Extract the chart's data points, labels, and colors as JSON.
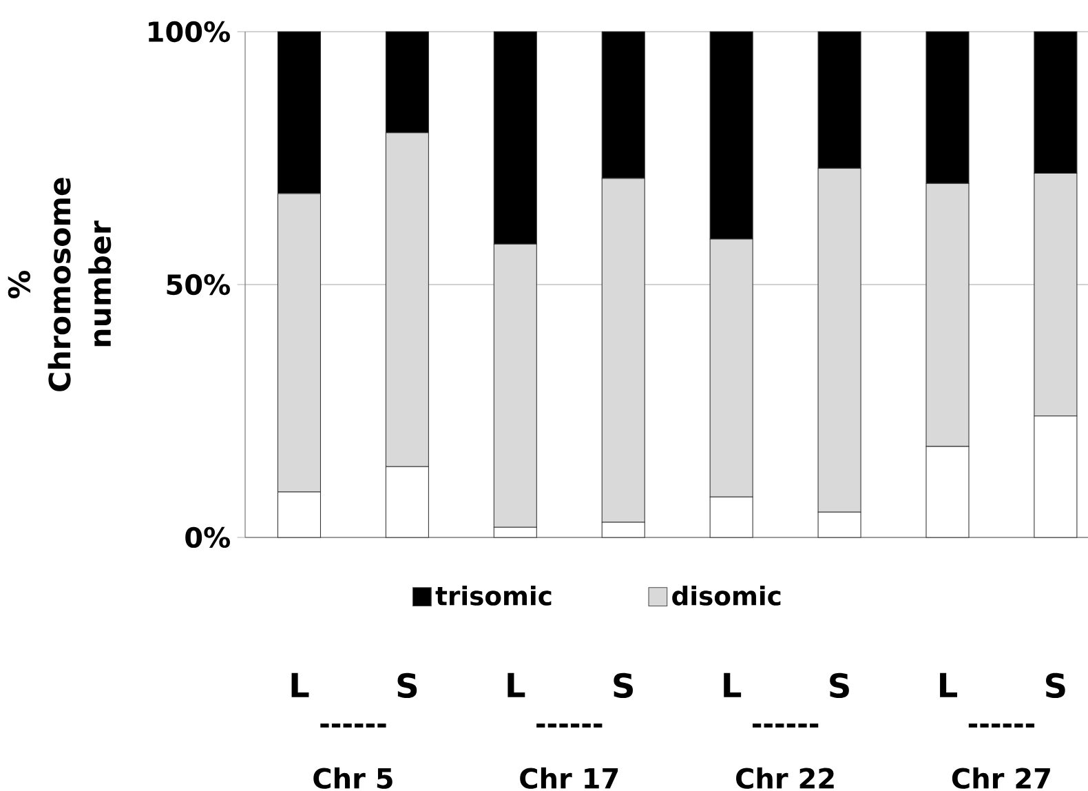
{
  "chart_data": {
    "type": "bar",
    "stacked": true,
    "ylabel": "% Chromosome number",
    "categories": [
      "L",
      "S",
      "L",
      "S",
      "L",
      "S",
      "L",
      "S"
    ],
    "series": [
      {
        "color": "#ffffff",
        "values": [
          9,
          14,
          2,
          3,
          8,
          5,
          18,
          24
        ]
      },
      {
        "name": "disomic",
        "color": "#d9d9d9",
        "values": [
          59,
          66,
          56,
          68,
          51,
          68,
          52,
          48
        ]
      },
      {
        "name": "trisomic",
        "color": "#000000",
        "values": [
          32,
          20,
          42,
          29,
          41,
          27,
          30,
          28
        ]
      }
    ],
    "ylim": [
      0,
      100
    ],
    "yticks": [
      {
        "value": 0,
        "label": "0%"
      },
      {
        "value": 50,
        "label": "50%"
      },
      {
        "value": 100,
        "label": "100%"
      }
    ],
    "grid": "y",
    "legend": "bottom",
    "annotations": [
      "------",
      "Chr 5",
      "------",
      "Chr 17",
      "------",
      "Chr 22",
      "------",
      "Chr 27"
    ]
  }
}
